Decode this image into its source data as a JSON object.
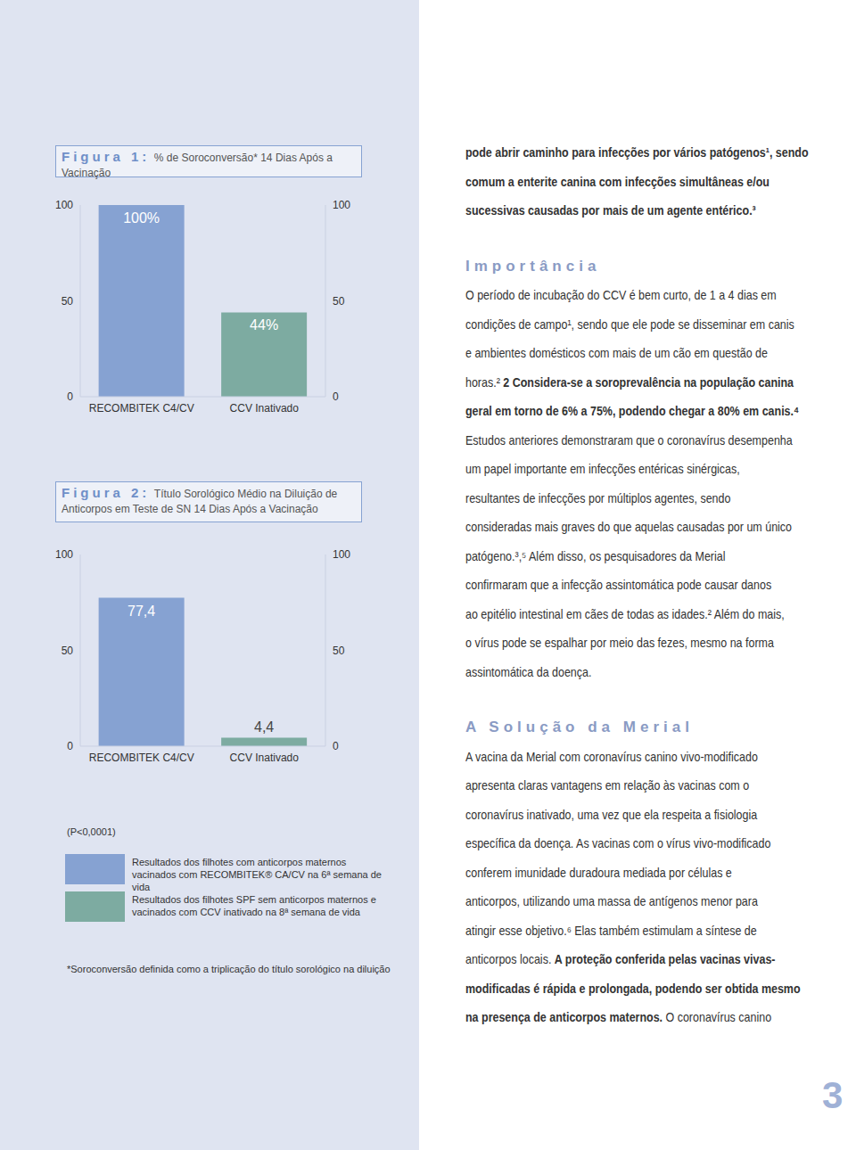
{
  "chart_data": [
    {
      "type": "bar",
      "title": "Figura 1:",
      "subtitle": "% de Soroconversão* 14 Dias Após a Vacinação",
      "categories": [
        "RECOMBITEK C4/CV",
        "CCV Inativado"
      ],
      "values": [
        100,
        44
      ],
      "value_labels": [
        "100%",
        "44%"
      ],
      "colors": [
        "#86a2d2",
        "#7daba1"
      ],
      "ylim": [
        0,
        100
      ],
      "yticks": [
        0,
        50,
        100
      ],
      "y2lim": [
        0,
        100
      ],
      "y2ticks": [
        0,
        50,
        100
      ],
      "data_labels": true,
      "grid": false
    },
    {
      "type": "bar",
      "title": "Figura 2:",
      "subtitle": "Título Sorológico Médio na Diluição de Anticorpos em Teste de SN 14 Dias Após a Vacinação",
      "categories": [
        "RECOMBITEK C4/CV",
        "CCV Inativado"
      ],
      "values": [
        77.4,
        4.4
      ],
      "value_labels": [
        "77,4",
        "4,4"
      ],
      "colors": [
        "#86a2d2",
        "#7daba1"
      ],
      "ylim": [
        0,
        100
      ],
      "yticks": [
        0,
        50,
        100
      ],
      "y2lim": [
        0,
        100
      ],
      "y2ticks": [
        0,
        50,
        100
      ],
      "data_labels": true,
      "grid": false
    }
  ],
  "key_box": {
    "note": "(P<0,0001)",
    "items": [
      "Resultados dos filhotes com anticorpos maternos vacinados com RECOMBITEK® CA/CV na 6ª semana de vida",
      "Resultados dos filhotes SPF sem anticorpos maternos e vacinados com CCV inativado na 8ª semana de vida"
    ]
  },
  "footnote": "*Soroconversão definida como a triplicação do título sorológico na diluição",
  "body": {
    "intro": [
      {
        "text": "pode abrir caminho para infecções por vários patógenos¹, sendo",
        "bold": true
      },
      {
        "text": "comum a enterite canina com infecções simultâneas e/ou",
        "bold": true
      },
      {
        "text": "sucessivas causadas por mais de um agente entérico.³",
        "bold": true
      }
    ],
    "sections": [
      {
        "heading": "Importância",
        "lines": [
          "O período de incubação do CCV é bem curto, de 1 a 4 dias em",
          "condições de campo¹, sendo que ele pode se disseminar em canis",
          "e ambientes domésticos com mais de um cão em questão de",
          [
            {
              "text": "horas.² ",
              "bold": false
            },
            {
              "text": "2 Considera-se a soroprevalência na população canina",
              "bold": true
            }
          ],
          {
            "text": "geral em torno de 6% a 75%, podendo chegar a 80% em canis.⁴",
            "bold": true
          },
          "Estudos anteriores demonstraram que o coronavírus desempenha",
          "um papel importante em infecções entéricas sinérgicas,",
          "resultantes de infecções por múltiplos agentes, sendo",
          "consideradas mais graves do que aquelas causadas por um único",
          "patógeno.³,⁵ Além disso, os pesquisadores da Merial",
          "confirmaram que a infecção assintomática pode causar danos",
          "ao epitélio intestinal em cães de todas as idades.² Além do mais,",
          "o vírus pode se espalhar por meio das fezes, mesmo na forma",
          "assintomática da doença."
        ]
      },
      {
        "heading": "A Solução da Merial",
        "lines": [
          "A vacina da Merial com coronavírus canino vivo-modificado",
          "apresenta claras vantagens em relação às vacinas com o",
          "coronavírus inativado, uma vez que ela respeita a fisiologia",
          "específica da doença. As vacinas com o vírus vivo-modificado",
          "conferem imunidade duradoura mediada por células e",
          "anticorpos, utilizando uma massa de antígenos menor para",
          "atingir esse objetivo.⁶ Elas também estimulam a síntese de",
          [
            {
              "text": "anticorpos locais. ",
              "bold": false
            },
            {
              "text": "A proteção conferida pelas vacinas vivas-",
              "bold": true
            }
          ],
          {
            "text": "modificadas é rápida e prolongada, podendo ser obtida mesmo",
            "bold": true
          },
          [
            {
              "text": "na presença de anticorpos maternos.",
              "bold": true
            },
            {
              "text": " O coronavírus canino",
              "bold": false
            }
          ]
        ]
      }
    ]
  },
  "page_number": "3"
}
